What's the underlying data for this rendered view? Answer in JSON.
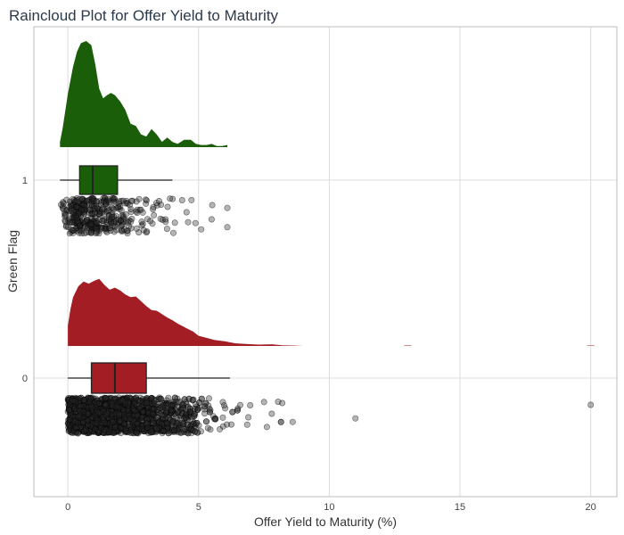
{
  "chart_data": {
    "type": "raincloud",
    "title": "Raincloud Plot for Offer Yield to Maturity",
    "xlabel": "Offer Yield to Maturity (%)",
    "ylabel": "Green Flag",
    "xlim": [
      -1.3,
      21.0
    ],
    "xticks": [
      0,
      5,
      10,
      15,
      20
    ],
    "grid": true,
    "groups": [
      {
        "label": "1",
        "color": "#1a5e0a",
        "density": {
          "x": [
            -0.3,
            -0.2,
            0.0,
            0.2,
            0.35,
            0.5,
            0.7,
            0.9,
            1.05,
            1.2,
            1.35,
            1.5,
            1.65,
            1.8,
            2.0,
            2.2,
            2.4,
            2.6,
            2.8,
            3.0,
            3.2,
            3.4,
            3.6,
            3.8,
            4.0,
            4.2,
            4.45,
            4.7,
            4.9,
            5.1,
            5.3,
            5.5,
            5.7,
            5.9,
            6.1
          ],
          "y": [
            0.05,
            0.18,
            0.5,
            0.76,
            0.9,
            0.98,
            1.0,
            0.96,
            0.78,
            0.55,
            0.46,
            0.49,
            0.51,
            0.49,
            0.43,
            0.35,
            0.22,
            0.2,
            0.12,
            0.1,
            0.17,
            0.12,
            0.05,
            0.09,
            0.05,
            0.03,
            0.07,
            0.07,
            0.03,
            0.02,
            0.02,
            0.03,
            0.01,
            0.01,
            0.02
          ]
        },
        "box": {
          "min": -0.3,
          "q1": 0.45,
          "median": 0.95,
          "q3": 1.9,
          "max": 4.0
        }
      },
      {
        "label": "0",
        "color": "#a31e24",
        "density": {
          "x": [
            0.0,
            0.1,
            0.2,
            0.4,
            0.6,
            0.8,
            1.0,
            1.2,
            1.4,
            1.6,
            1.8,
            2.0,
            2.2,
            2.4,
            2.6,
            2.8,
            3.0,
            3.2,
            3.4,
            3.6,
            3.8,
            4.0,
            4.2,
            4.4,
            4.6,
            4.8,
            5.0,
            5.3,
            5.6,
            6.0,
            6.4,
            6.8,
            7.3,
            7.8,
            8.2,
            8.7,
            9.0
          ],
          "y": [
            0.3,
            0.55,
            0.72,
            0.88,
            0.95,
            0.92,
            0.96,
            0.99,
            0.9,
            0.83,
            0.86,
            0.82,
            0.76,
            0.72,
            0.73,
            0.66,
            0.59,
            0.53,
            0.52,
            0.47,
            0.42,
            0.38,
            0.33,
            0.29,
            0.25,
            0.21,
            0.15,
            0.12,
            0.09,
            0.07,
            0.04,
            0.03,
            0.02,
            0.025,
            0.01,
            0.005,
            0.0
          ]
        },
        "tail": [
          [
            13.0,
            0.004
          ],
          [
            20.0,
            0.004
          ]
        ],
        "box": {
          "min": 0.0,
          "q1": 0.9,
          "median": 1.8,
          "q3": 3.0,
          "max": 6.2
        }
      }
    ],
    "outliers": [
      {
        "group": "0",
        "x": 11.0,
        "jitter": 0.58
      },
      {
        "group": "0",
        "x": 20.0,
        "jitter": 0.2
      },
      {
        "group": "0",
        "x": 8.6,
        "jitter": 0.68
      },
      {
        "group": "0",
        "x": 8.2,
        "jitter": 0.15
      },
      {
        "group": "0",
        "x": 7.8,
        "jitter": 0.45
      },
      {
        "group": "1",
        "x": 6.1,
        "jitter": 0.82
      },
      {
        "group": "1",
        "x": 6.1,
        "jitter": 0.28
      },
      {
        "group": "1",
        "x": 5.5,
        "jitter": 0.6
      }
    ]
  }
}
